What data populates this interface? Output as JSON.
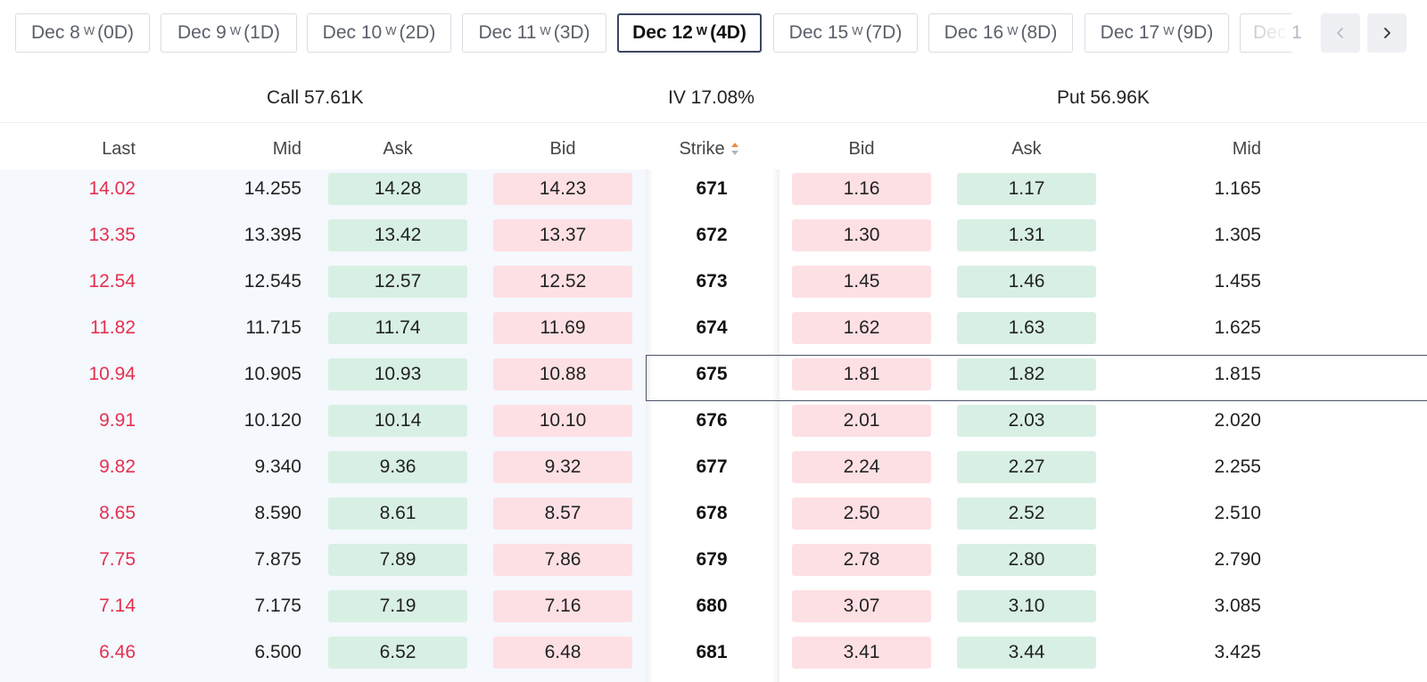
{
  "expirations": [
    {
      "date": "Dec 8",
      "tag": "W",
      "dte": "(0D)",
      "active": false
    },
    {
      "date": "Dec 9",
      "tag": "W",
      "dte": "(1D)",
      "active": false
    },
    {
      "date": "Dec 10",
      "tag": "W",
      "dte": "(2D)",
      "active": false
    },
    {
      "date": "Dec 11",
      "tag": "W",
      "dte": "(3D)",
      "active": false
    },
    {
      "date": "Dec 12",
      "tag": "W",
      "dte": "(4D)",
      "active": true
    },
    {
      "date": "Dec 15",
      "tag": "W",
      "dte": "(7D)",
      "active": false
    },
    {
      "date": "Dec 16",
      "tag": "W",
      "dte": "(8D)",
      "active": false
    },
    {
      "date": "Dec 17",
      "tag": "W",
      "dte": "(9D)",
      "active": false
    }
  ],
  "clipped_tab": "Dec 1",
  "nav": {
    "prev_icon": "chevron-left-icon",
    "next_icon": "chevron-right-icon"
  },
  "summary": {
    "call": "Call 57.61K",
    "iv": "IV 17.08%",
    "put": "Put 56.96K"
  },
  "headers": {
    "call_last": "Last",
    "call_mid": "Mid",
    "call_ask": "Ask",
    "call_bid": "Bid",
    "strike": "Strike",
    "put_bid": "Bid",
    "put_ask": "Ask",
    "put_mid": "Mid"
  },
  "colors": {
    "last_price": "#e5304f",
    "ask_fill": "#d8f0e4",
    "bid_fill": "#fde0e4",
    "sort_up": "#f08a3c",
    "sort_down": "#b0b4bc"
  },
  "highlighted_strike": "675",
  "rows": [
    {
      "call_last": "14.02",
      "call_mid": "14.255",
      "call_ask": "14.28",
      "call_bid": "14.23",
      "strike": "671",
      "put_bid": "1.16",
      "put_ask": "1.17",
      "put_mid": "1.165"
    },
    {
      "call_last": "13.35",
      "call_mid": "13.395",
      "call_ask": "13.42",
      "call_bid": "13.37",
      "strike": "672",
      "put_bid": "1.30",
      "put_ask": "1.31",
      "put_mid": "1.305"
    },
    {
      "call_last": "12.54",
      "call_mid": "12.545",
      "call_ask": "12.57",
      "call_bid": "12.52",
      "strike": "673",
      "put_bid": "1.45",
      "put_ask": "1.46",
      "put_mid": "1.455"
    },
    {
      "call_last": "11.82",
      "call_mid": "11.715",
      "call_ask": "11.74",
      "call_bid": "11.69",
      "strike": "674",
      "put_bid": "1.62",
      "put_ask": "1.63",
      "put_mid": "1.625"
    },
    {
      "call_last": "10.94",
      "call_mid": "10.905",
      "call_ask": "10.93",
      "call_bid": "10.88",
      "strike": "675",
      "put_bid": "1.81",
      "put_ask": "1.82",
      "put_mid": "1.815"
    },
    {
      "call_last": "9.91",
      "call_mid": "10.120",
      "call_ask": "10.14",
      "call_bid": "10.10",
      "strike": "676",
      "put_bid": "2.01",
      "put_ask": "2.03",
      "put_mid": "2.020"
    },
    {
      "call_last": "9.82",
      "call_mid": "9.340",
      "call_ask": "9.36",
      "call_bid": "9.32",
      "strike": "677",
      "put_bid": "2.24",
      "put_ask": "2.27",
      "put_mid": "2.255"
    },
    {
      "call_last": "8.65",
      "call_mid": "8.590",
      "call_ask": "8.61",
      "call_bid": "8.57",
      "strike": "678",
      "put_bid": "2.50",
      "put_ask": "2.52",
      "put_mid": "2.510"
    },
    {
      "call_last": "7.75",
      "call_mid": "7.875",
      "call_ask": "7.89",
      "call_bid": "7.86",
      "strike": "679",
      "put_bid": "2.78",
      "put_ask": "2.80",
      "put_mid": "2.790"
    },
    {
      "call_last": "7.14",
      "call_mid": "7.175",
      "call_ask": "7.19",
      "call_bid": "7.16",
      "strike": "680",
      "put_bid": "3.07",
      "put_ask": "3.10",
      "put_mid": "3.085"
    },
    {
      "call_last": "6.46",
      "call_mid": "6.500",
      "call_ask": "6.52",
      "call_bid": "6.48",
      "strike": "681",
      "put_bid": "3.41",
      "put_ask": "3.44",
      "put_mid": "3.425"
    }
  ]
}
